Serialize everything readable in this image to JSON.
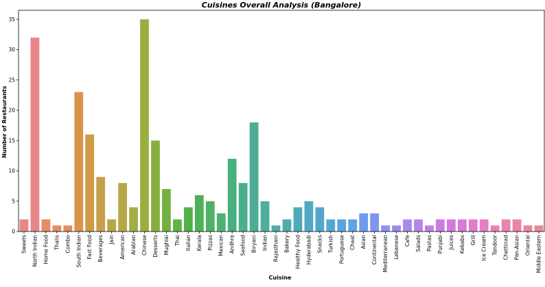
{
  "chart_data": {
    "type": "bar",
    "title": "Cuisines Overall Analysis (Bangalore)",
    "xlabel": "Cuisine",
    "ylabel": "Number of Restaurants",
    "ylim": [
      0,
      36.5
    ],
    "yticks": [
      0,
      5,
      10,
      15,
      20,
      25,
      30,
      35
    ],
    "grid": false,
    "categories": [
      "Sweets",
      "North Indian",
      "Home Food",
      "Thalis",
      "Combo",
      "South Indian",
      "Fast Food",
      "Beverages",
      "Jain",
      "American",
      "Arabian",
      "Chinese",
      "Desserts",
      "Mughlai",
      "Thai",
      "Italian",
      "Kerala",
      "Pizzas",
      "Mexican",
      "Andhra",
      "Seafood",
      "Biryani",
      "Indian",
      "Rajasthani",
      "Bakery",
      "Healthy Food",
      "Hyderabadi",
      "Snacks",
      "Turkish",
      "Portuguese",
      "Chaat",
      "Asian",
      "Continental",
      "Mediterranean",
      "Lebanese",
      "Cafe",
      "Salads",
      "Pastas",
      "Punjabi",
      "Juices",
      "Kebabs",
      "Grill",
      "Ice Cream",
      "Tandoor",
      "Chettinad",
      "Pan-Asian",
      "Oriental",
      "Middle Eastern"
    ],
    "values": [
      2,
      32,
      2,
      1,
      1,
      23,
      16,
      9,
      2,
      8,
      4,
      35,
      15,
      7,
      2,
      4,
      6,
      5,
      3,
      12,
      8,
      18,
      5,
      1,
      2,
      4,
      5,
      4,
      2,
      2,
      2,
      3,
      3,
      1,
      1,
      2,
      2,
      1,
      2,
      2,
      2,
      2,
      2,
      1,
      2,
      2,
      1,
      1
    ],
    "colors": [
      "#e8868b",
      "#e8868b",
      "#e38e66",
      "#e38e66",
      "#e38e66",
      "#d8944a",
      "#cf9a45",
      "#c4a04c",
      "#b9a446",
      "#b7a748",
      "#a5ac47",
      "#9aae3f",
      "#88ae40",
      "#74b143",
      "#62b347",
      "#52b049",
      "#4fb157",
      "#50b066",
      "#4fb074",
      "#4aaf80",
      "#4aaf8b",
      "#4cae96",
      "#4dae9f",
      "#4dada7",
      "#4eacb1",
      "#4eabb9",
      "#50a9c2",
      "#52a8cb",
      "#54a6d5",
      "#58a4df",
      "#60a1e7",
      "#6e9bea",
      "#7e96ec",
      "#8d91ed",
      "#9c8cee",
      "#ab88ee",
      "#b884ea",
      "#c180e6",
      "#ca7ce3",
      "#d27adc",
      "#d979d4",
      "#e07ccc",
      "#e57fc2",
      "#e881b8",
      "#ea83ae",
      "#eb85a4",
      "#ea879b",
      "#e98893"
    ]
  }
}
